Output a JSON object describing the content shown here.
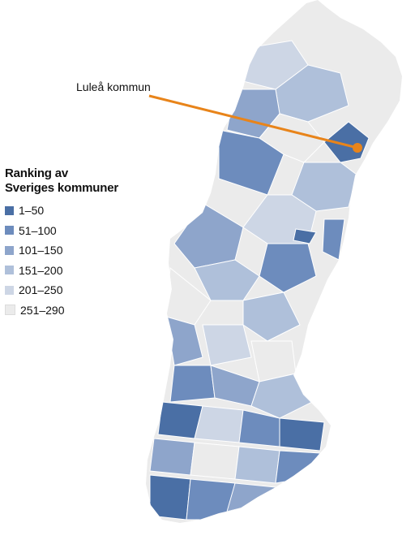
{
  "callout": {
    "label": "Luleå kommun",
    "color": "#e8841a"
  },
  "legend": {
    "title_line1": "Ranking av",
    "title_line2": "Sveriges kommuner",
    "items": [
      {
        "label": "1–50",
        "color": "#4a6fa5"
      },
      {
        "label": "51–100",
        "color": "#6d8cbd"
      },
      {
        "label": "101–150",
        "color": "#8ea5cb"
      },
      {
        "label": "151–200",
        "color": "#afc0da"
      },
      {
        "label": "201–250",
        "color": "#cdd6e5"
      },
      {
        "label": "251–290",
        "color": "#ebebeb"
      }
    ]
  }
}
